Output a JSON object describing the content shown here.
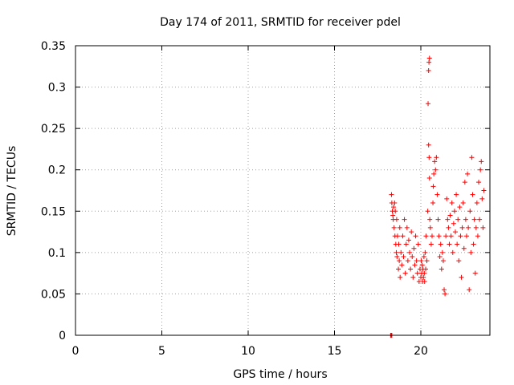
{
  "chart_data": {
    "type": "scatter",
    "title": "Day 174 of 2011, SRMTID for receiver pdel",
    "xlabel": "GPS time / hours",
    "ylabel": "SRMTID / TECUs",
    "xlim": [
      0,
      24
    ],
    "ylim": [
      0,
      0.35
    ],
    "x_ticks": [
      0,
      5,
      10,
      15,
      20
    ],
    "x_tick_labels": [
      "0",
      "5",
      "10",
      "15",
      "20"
    ],
    "y_ticks": [
      0,
      0.05,
      0.1,
      0.15,
      0.2,
      0.25,
      0.3,
      0.35
    ],
    "y_tick_labels": [
      "0",
      "0.05",
      "0.1",
      "0.15",
      "0.2",
      "0.25",
      "0.3",
      "0.35"
    ],
    "grid": true,
    "marker": "+",
    "color": "#ff0000",
    "series": [
      {
        "name": "SRMTID",
        "points": [
          [
            18.25,
            0.0
          ],
          [
            18.28,
            0.0
          ],
          [
            18.3,
            0.0
          ],
          [
            18.32,
            0.0
          ],
          [
            18.3,
            0.17
          ],
          [
            18.32,
            0.16
          ],
          [
            18.35,
            0.15
          ],
          [
            18.38,
            0.145
          ],
          [
            18.4,
            0.14
          ],
          [
            18.42,
            0.155
          ],
          [
            18.45,
            0.13
          ],
          [
            18.48,
            0.16
          ],
          [
            18.5,
            0.12
          ],
          [
            18.52,
            0.15
          ],
          [
            18.55,
            0.11
          ],
          [
            18.58,
            0.1
          ],
          [
            18.6,
            0.14
          ],
          [
            18.62,
            0.095
          ],
          [
            18.65,
            0.12
          ],
          [
            18.7,
            0.08
          ],
          [
            18.72,
            0.11
          ],
          [
            18.75,
            0.09
          ],
          [
            18.78,
            0.13
          ],
          [
            18.8,
            0.07
          ],
          [
            18.85,
            0.1
          ],
          [
            18.9,
            0.085
          ],
          [
            18.95,
            0.12
          ],
          [
            19.0,
            0.095
          ],
          [
            19.05,
            0.14
          ],
          [
            19.1,
            0.075
          ],
          [
            19.15,
            0.11
          ],
          [
            19.2,
            0.13
          ],
          [
            19.25,
            0.09
          ],
          [
            19.3,
            0.115
          ],
          [
            19.35,
            0.1
          ],
          [
            19.4,
            0.08
          ],
          [
            19.45,
            0.125
          ],
          [
            19.5,
            0.095
          ],
          [
            19.55,
            0.07
          ],
          [
            19.6,
            0.105
          ],
          [
            19.65,
            0.085
          ],
          [
            19.7,
            0.12
          ],
          [
            19.75,
            0.09
          ],
          [
            19.8,
            0.075
          ],
          [
            19.85,
            0.11
          ],
          [
            19.9,
            0.065
          ],
          [
            19.95,
            0.08
          ],
          [
            20.0,
            0.07
          ],
          [
            20.02,
            0.09
          ],
          [
            20.05,
            0.075
          ],
          [
            20.08,
            0.085
          ],
          [
            20.1,
            0.065
          ],
          [
            20.12,
            0.08
          ],
          [
            20.15,
            0.07
          ],
          [
            20.18,
            0.095
          ],
          [
            20.2,
            0.075
          ],
          [
            20.22,
            0.065
          ],
          [
            20.25,
            0.1
          ],
          [
            20.28,
            0.08
          ],
          [
            20.3,
            0.12
          ],
          [
            20.35,
            0.09
          ],
          [
            20.4,
            0.15
          ],
          [
            20.42,
            0.28
          ],
          [
            20.45,
            0.32
          ],
          [
            20.47,
            0.33
          ],
          [
            20.5,
            0.335
          ],
          [
            20.45,
            0.23
          ],
          [
            20.48,
            0.215
          ],
          [
            20.5,
            0.19
          ],
          [
            20.52,
            0.14
          ],
          [
            20.55,
            0.13
          ],
          [
            20.6,
            0.11
          ],
          [
            20.65,
            0.12
          ],
          [
            20.7,
            0.16
          ],
          [
            20.72,
            0.18
          ],
          [
            20.75,
            0.195
          ],
          [
            20.8,
            0.21
          ],
          [
            20.85,
            0.2
          ],
          [
            20.9,
            0.215
          ],
          [
            20.95,
            0.17
          ],
          [
            21.0,
            0.14
          ],
          [
            21.05,
            0.12
          ],
          [
            21.1,
            0.095
          ],
          [
            21.15,
            0.11
          ],
          [
            21.2,
            0.08
          ],
          [
            21.25,
            0.1
          ],
          [
            21.3,
            0.09
          ],
          [
            21.35,
            0.055
          ],
          [
            21.4,
            0.05
          ],
          [
            21.45,
            0.12
          ],
          [
            21.5,
            0.165
          ],
          [
            21.55,
            0.14
          ],
          [
            21.6,
            0.13
          ],
          [
            21.65,
            0.11
          ],
          [
            21.7,
            0.145
          ],
          [
            21.75,
            0.12
          ],
          [
            21.8,
            0.16
          ],
          [
            21.85,
            0.1
          ],
          [
            21.9,
            0.135
          ],
          [
            21.95,
            0.15
          ],
          [
            22.0,
            0.125
          ],
          [
            22.05,
            0.17
          ],
          [
            22.1,
            0.11
          ],
          [
            22.15,
            0.14
          ],
          [
            22.2,
            0.09
          ],
          [
            22.25,
            0.155
          ],
          [
            22.3,
            0.12
          ],
          [
            22.35,
            0.07
          ],
          [
            22.4,
            0.13
          ],
          [
            22.45,
            0.16
          ],
          [
            22.5,
            0.105
          ],
          [
            22.55,
            0.185
          ],
          [
            22.6,
            0.14
          ],
          [
            22.65,
            0.12
          ],
          [
            22.7,
            0.195
          ],
          [
            22.75,
            0.13
          ],
          [
            22.8,
            0.055
          ],
          [
            22.85,
            0.15
          ],
          [
            22.9,
            0.1
          ],
          [
            22.95,
            0.215
          ],
          [
            23.0,
            0.17
          ],
          [
            23.05,
            0.11
          ],
          [
            23.1,
            0.14
          ],
          [
            23.15,
            0.075
          ],
          [
            23.2,
            0.13
          ],
          [
            23.25,
            0.16
          ],
          [
            23.3,
            0.12
          ],
          [
            23.35,
            0.185
          ],
          [
            23.4,
            0.14
          ],
          [
            23.45,
            0.2
          ],
          [
            23.5,
            0.21
          ],
          [
            23.55,
            0.165
          ],
          [
            23.6,
            0.13
          ],
          [
            23.65,
            0.175
          ]
        ]
      }
    ]
  }
}
